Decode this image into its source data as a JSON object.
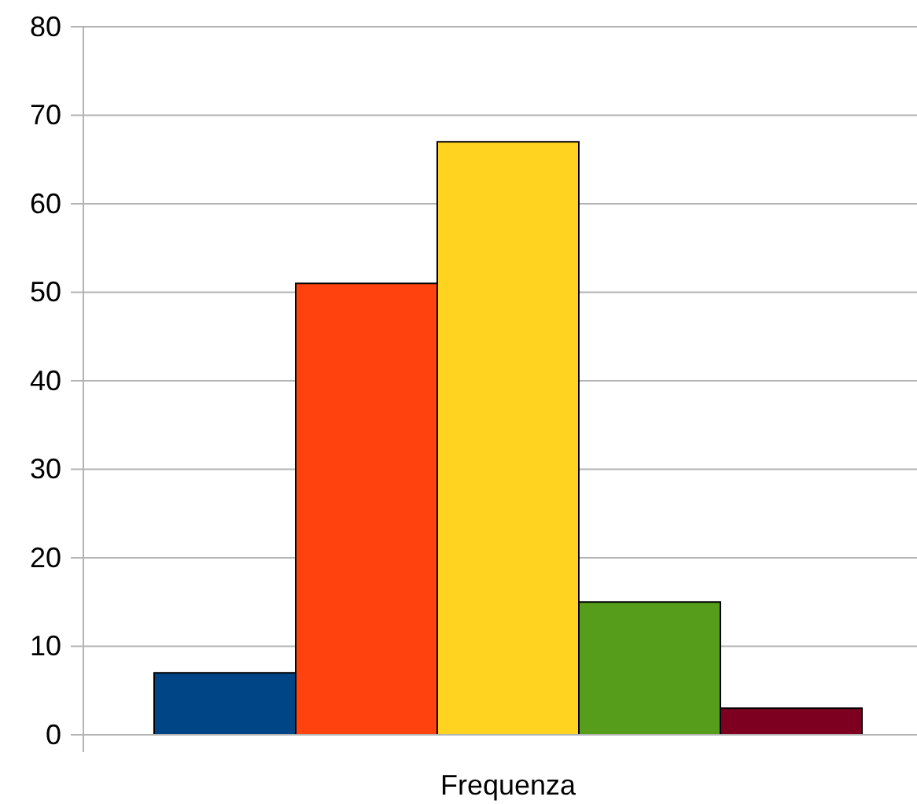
{
  "chart_data": {
    "type": "bar",
    "xlabel": "Frequenza",
    "categories": [
      null
    ],
    "series": [
      {
        "color": "#004586",
        "values": [
          7
        ]
      },
      {
        "color": "#ff420e",
        "values": [
          51
        ]
      },
      {
        "color": "#ffd320",
        "values": [
          67
        ]
      },
      {
        "color": "#579d1c",
        "values": [
          15
        ]
      },
      {
        "color": "#7e0021",
        "values": [
          3
        ]
      }
    ],
    "ylim": [
      0,
      80
    ],
    "yticks": [
      0,
      10,
      20,
      30,
      40,
      50,
      60,
      70,
      80
    ],
    "grid": "y"
  }
}
